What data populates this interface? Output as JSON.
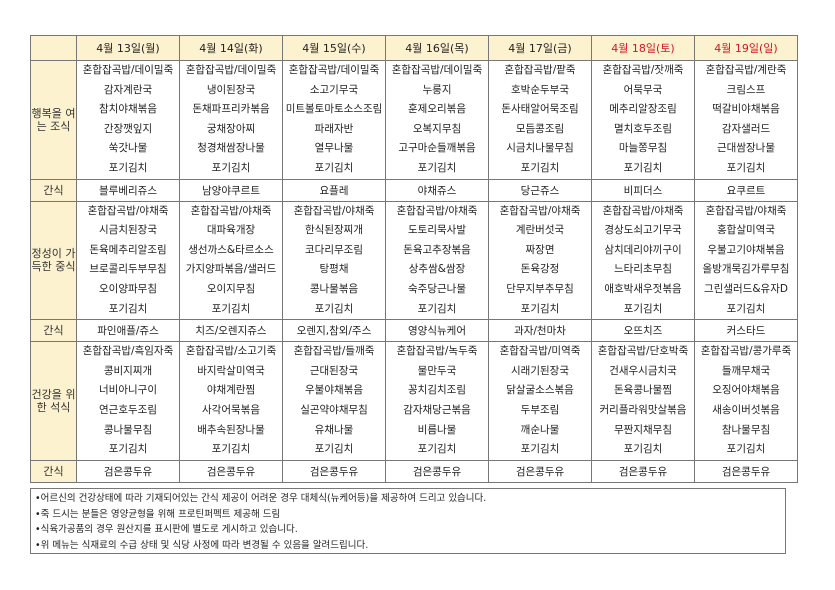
{
  "days": [
    {
      "label": "4월  13일(월)",
      "weekend": false
    },
    {
      "label": "4월  14일(화)",
      "weekend": false
    },
    {
      "label": "4월  15일(수)",
      "weekend": false
    },
    {
      "label": "4월  16일(목)",
      "weekend": false
    },
    {
      "label": "4월  17일(금)",
      "weekend": false
    },
    {
      "label": "4월  18일(토)",
      "weekend": true
    },
    {
      "label": "4월  19일(일)",
      "weekend": true
    }
  ],
  "colors": {
    "header_bg": "#fdf2cf",
    "weekend": "#d0181f"
  },
  "rows": {
    "breakfast_label": "행복을 여는 조식",
    "lunch_label": "정성이 가득한 중식",
    "dinner_label": "건강을 위한 석식",
    "snack_label": "간식"
  },
  "breakfast": [
    [
      "혼합잡곡밥/데이밀죽",
      "감자계란국",
      "참치야채볶음",
      "간장깻잎지",
      "쑥갓나물",
      "포기김치"
    ],
    [
      "혼합잡곡밥/데이밀죽",
      "냉이된장국",
      "돈채파프리카볶음",
      "궁채장아찌",
      "청경채쌈장나물",
      "포기김치"
    ],
    [
      "혼합잡곡밥/데이밀죽",
      "소고기무국",
      "미트볼토마토소스조림",
      "파래자반",
      "열무나물",
      "포기김치"
    ],
    [
      "혼합잡곡밥/데이밀죽",
      "누룽지",
      "훈제오리볶음",
      "오복지무침",
      "고구마순들깨볶음",
      "포기김치"
    ],
    [
      "혼합잡곡밥/팥죽",
      "호박순두부국",
      "돈사태알어묵조림",
      "모듬콩조림",
      "시금치나물무침",
      "포기김치"
    ],
    [
      "혼합잡곡밥/잣깨죽",
      "어묵무국",
      "메추리알장조림",
      "멸치호두조림",
      "마늘쫑무침",
      "포기김치"
    ],
    [
      "혼합잡곡밥/계란죽",
      "크림스프",
      "떡갈비야채볶음",
      "감자샐러드",
      "근대쌈장나물",
      "포기김치"
    ]
  ],
  "snack1": [
    "블루베리쥬스",
    "남양야쿠르트",
    "요플레",
    "야채쥬스",
    "당근쥬스",
    "비피더스",
    "요쿠르트"
  ],
  "lunch": [
    [
      "혼합잡곡밥/야채죽",
      "시금치된장국",
      "돈육메추리알조림",
      "브로콜리두부무침",
      "오이양파무침",
      "포기김치"
    ],
    [
      "혼합잡곡밥/야채죽",
      "대파육개장",
      "생선까스&타르소스",
      "가지양파볶음/샐러드",
      "오이지무침",
      "포기김치"
    ],
    [
      "혼합잡곡밥/야채죽",
      "한식된장찌개",
      "코다리무조림",
      "탕평채",
      "콩나물볶음",
      "포기김치"
    ],
    [
      "혼합잡곡밥/야채죽",
      "도토리묵사발",
      "돈육고추장볶음",
      "상추쌈&쌈장",
      "숙주당근나물",
      "포기김치"
    ],
    [
      "혼합잡곡밥/야채죽",
      "계란버섯국",
      "짜장면",
      "돈육강정",
      "단무지부추무침",
      "포기김치"
    ],
    [
      "혼합잡곡밥/야채죽",
      "경상도쇠고기무국",
      "삼치데리야끼구이",
      "느타리초무침",
      "애호박새우젓볶음",
      "포기김치"
    ],
    [
      "혼합잡곡밥/야채죽",
      "홍합살미역국",
      "우불고기야채볶음",
      "올방개묵김가루무침",
      "그린샐러드&유자D",
      "포기김치"
    ]
  ],
  "snack2": [
    "파인애플/쥬스",
    "치즈/오렌지쥬스",
    "오렌지,참외/주스",
    "영양식뉴케어",
    "과자/천마차",
    "오뜨치즈",
    "커스타드"
  ],
  "dinner": [
    [
      "혼합잡곡밥/흑임자죽",
      "콩비지찌개",
      "너비아니구이",
      "연근호두조림",
      "콩나물무침",
      "포기김치"
    ],
    [
      "혼합잡곡밥/소고기죽",
      "바지락살미역국",
      "야채계란찜",
      "사각어묵볶음",
      "배추속된장나물",
      "포기김치"
    ],
    [
      "혼합잡곡밥/들깨죽",
      "근대된장국",
      "우불야채볶음",
      "실곤약야채무침",
      "유채나물",
      "포기김치"
    ],
    [
      "혼합잡곡밥/녹두죽",
      "물만두국",
      "꽁치김치조림",
      "감자채당근볶음",
      "비름나물",
      "포기김치"
    ],
    [
      "혼합잡곡밥/미역죽",
      "시래기된장국",
      "닭살굴소스볶음",
      "두부조림",
      "깨순나물",
      "포기김치"
    ],
    [
      "혼합잡곡밥/단호박죽",
      "건새우시금치국",
      "돈육콩나물찜",
      "커리플라워맛살볶음",
      "무짠지채무침",
      "포기김치"
    ],
    [
      "혼합잡곡밥/콩가루죽",
      "들깨무채국",
      "오징어야채볶음",
      "새송이버섯볶음",
      "참나물무침",
      "포기김치"
    ]
  ],
  "snack3": [
    "검은콩두유",
    "검은콩두유",
    "검은콩두유",
    "검은콩두유",
    "검은콩두유",
    "검은콩두유",
    "검은콩두유"
  ],
  "notes": [
    "•어르신의 건강상태에 따라 기재되어있는 간식 제공이 어려운 경우 대체식(뉴케어등)을 제공하여 드리고 있습니다.",
    "•죽 드시는 분들은 영양균형을 위해 프로틴퍼펙트 제공해 드림",
    "•식육가공품의 경우 원산지를 표시판에 별도로 게시하고 있습니다.",
    "•위 메뉴는 식재료의 수급 상태 및 식당 사정에 따라 변경될 수 있음을 알려드립니다."
  ]
}
